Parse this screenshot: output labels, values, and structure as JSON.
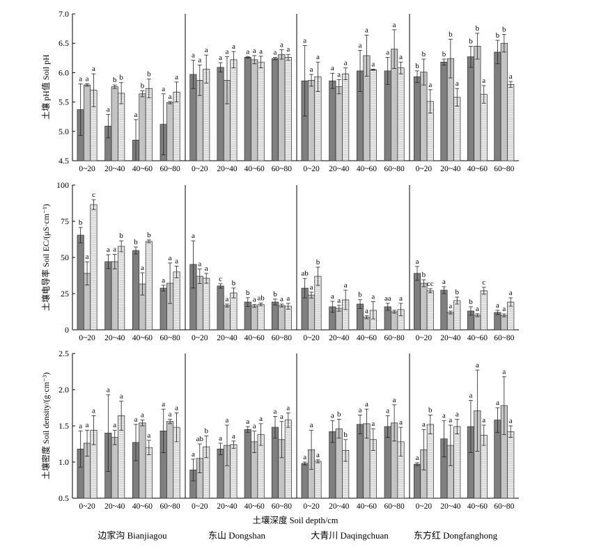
{
  "chart_data": {
    "type": "bar",
    "xlabel": "土壤深度 Soil depth/cm",
    "sites": [
      "边家沟 Bianjiagou",
      "东山 Dongshan",
      "大青川 Daqingchuan",
      "东方红 Dongfanghong"
    ],
    "depths": [
      "0~20",
      "20~40",
      "40~60",
      "60~80"
    ],
    "series_colors": [
      "#7f7f7f",
      "#c4c4c4",
      "#ededed"
    ],
    "panels": [
      {
        "ylabel": "土壤 pH值  Soil pH",
        "ylim": [
          4.5,
          7.0
        ],
        "yticks": [
          "4.5",
          "5.0",
          "5.5",
          "6.0",
          "6.5",
          "7.0"
        ],
        "data": [
          [
            {
              "values": [
                5.37,
                5.79,
                5.7
              ],
              "errors": [
                0.44,
                0.02,
                0.28
              ],
              "letters": [
                "a",
                "a",
                "a"
              ]
            },
            {
              "values": [
                5.09,
                5.76,
                5.65
              ],
              "errors": [
                0.2,
                0.03,
                0.18
              ],
              "letters": [
                "a",
                "b",
                "b"
              ]
            },
            {
              "values": [
                4.85,
                5.64,
                5.73
              ],
              "errors": [
                0.35,
                0.05,
                0.16
              ],
              "letters": [
                "a",
                "b",
                "b"
              ]
            },
            {
              "values": [
                5.12,
                5.49,
                5.67
              ],
              "errors": [
                0.52,
                0.02,
                0.17
              ],
              "letters": [
                "a",
                "a",
                "a"
              ]
            }
          ],
          [
            {
              "values": [
                5.97,
                5.87,
                6.06
              ],
              "errors": [
                0.24,
                0.26,
                0.24
              ],
              "letters": [
                "a",
                "a",
                "a"
              ]
            },
            {
              "values": [
                6.09,
                5.87,
                6.22
              ],
              "errors": [
                0.08,
                0.4,
                0.14
              ],
              "letters": [
                "a",
                "a",
                "a"
              ]
            },
            {
              "values": [
                6.26,
                6.22,
                6.18
              ],
              "errors": [
                0.01,
                0.07,
                0.1
              ],
              "letters": [
                "a",
                "a",
                "a"
              ]
            },
            {
              "values": [
                6.24,
                6.31,
                6.26
              ],
              "errors": [
                0.02,
                0.08,
                0.05
              ],
              "letters": [
                "a",
                "a",
                "a"
              ]
            }
          ],
          [
            {
              "values": [
                5.86,
                5.87,
                5.93
              ],
              "errors": [
                0.6,
                0.1,
                0.25
              ],
              "letters": [
                "a",
                "a",
                "a"
              ]
            },
            {
              "values": [
                5.86,
                5.76,
                5.98
              ],
              "errors": [
                0.13,
                0.12,
                0.1
              ],
              "letters": [
                "a",
                "a",
                "a"
              ]
            },
            {
              "values": [
                6.03,
                6.29,
                6.05
              ],
              "errors": [
                0.35,
                0.35,
                0.01
              ],
              "letters": [
                "a",
                "a",
                "a"
              ]
            },
            {
              "values": [
                6.03,
                6.4,
                6.08
              ],
              "errors": [
                0.23,
                0.33,
                0.1
              ],
              "letters": [
                "a",
                "a",
                "a"
              ]
            }
          ],
          [
            {
              "values": [
                5.93,
                6.01,
                5.51
              ],
              "errors": [
                0.1,
                0.22,
                0.2
              ],
              "letters": [
                "b",
                "b",
                "a"
              ]
            },
            {
              "values": [
                6.18,
                6.24,
                5.58
              ],
              "errors": [
                0.05,
                0.33,
                0.15
              ],
              "letters": [
                "b",
                "b",
                "a"
              ]
            },
            {
              "values": [
                6.27,
                6.45,
                5.63
              ],
              "errors": [
                0.18,
                0.22,
                0.15
              ],
              "letters": [
                "b",
                "b",
                "a"
              ]
            },
            {
              "values": [
                6.35,
                6.5,
                5.8
              ],
              "errors": [
                0.2,
                0.15,
                0.05
              ],
              "letters": [
                "b",
                "b",
                "a"
              ]
            }
          ]
        ]
      },
      {
        "ylabel": "土壤电导率 Soil EC/(μS·cm⁻¹)",
        "ylim": [
          0,
          100
        ],
        "yticks": [
          "0",
          "25",
          "50",
          "75",
          "100"
        ],
        "data": [
          [
            {
              "values": [
                65.4,
                39.0,
                86.5
              ],
              "errors": [
                5.3,
                8.0,
                3.4
              ],
              "letters": [
                "b",
                "a",
                "c"
              ]
            },
            {
              "values": [
                47.1,
                47.1,
                57.7
              ],
              "errors": [
                4.8,
                5.0,
                3.8
              ],
              "letters": [
                "a",
                "a",
                "b"
              ]
            },
            {
              "values": [
                54.8,
                31.7,
                61.1
              ],
              "errors": [
                2.4,
                7.7,
                1.0
              ],
              "letters": [
                "b",
                "a",
                "b"
              ]
            },
            {
              "values": [
                28.8,
                32.2,
                40.0
              ],
              "errors": [
                2.0,
                14.0,
                4.0
              ],
              "letters": [
                "a",
                "a",
                "a"
              ]
            }
          ],
          [
            {
              "values": [
                45.2,
                37.0,
                35.6
              ],
              "errors": [
                16.3,
                5.0,
                3.4
              ],
              "letters": [
                "a",
                "a",
                "a"
              ]
            },
            {
              "values": [
                30.3,
                16.8,
                25.5
              ],
              "errors": [
                1.5,
                1.0,
                3.4
              ],
              "letters": [
                "c",
                "a",
                "b"
              ]
            },
            {
              "values": [
                19.2,
                16.5,
                17.5
              ],
              "errors": [
                3.0,
                1.0,
                1.0
              ],
              "letters": [
                "b",
                "a",
                "ab"
              ]
            },
            {
              "values": [
                19.2,
                16.8,
                16.3
              ],
              "errors": [
                2.0,
                1.0,
                2.0
              ],
              "letters": [
                "b",
                "a",
                "a"
              ]
            }
          ],
          [
            {
              "values": [
                28.8,
                24.0,
                37.0
              ],
              "errors": [
                6.7,
                2.0,
                6.3
              ],
              "letters": [
                "ab",
                "a",
                "b"
              ]
            },
            {
              "values": [
                15.9,
                14.9,
                20.7
              ],
              "errors": [
                3.8,
                2.0,
                6.7
              ],
              "letters": [
                "a",
                "a",
                "a"
              ]
            },
            {
              "values": [
                17.8,
                8.7,
                13.5
              ],
              "errors": [
                3.0,
                1.0,
                6.0
              ],
              "letters": [
                "b",
                "a",
                "a"
              ]
            },
            {
              "values": [
                15.9,
                12.5,
                14.0
              ],
              "errors": [
                2.4,
                1.0,
                4.3
              ],
              "letters": [
                "aa",
                "",
                "a"
              ]
            }
          ],
          [
            {
              "values": [
                39.0,
                32.2,
                27.0
              ],
              "errors": [
                4.8,
                2.4,
                1.4
              ],
              "letters": [
                "a",
                "b",
                "cc"
              ]
            },
            {
              "values": [
                27.4,
                12.0,
                20.2
              ],
              "errors": [
                2.4,
                1.0,
                2.4
              ],
              "letters": [
                "a",
                "a",
                "b"
              ]
            },
            {
              "values": [
                13.0,
                10.1,
                27.0
              ],
              "errors": [
                2.9,
                1.0,
                2.4
              ],
              "letters": [
                "b",
                "a",
                "c"
              ]
            },
            {
              "values": [
                12.0,
                10.0,
                19.2
              ],
              "errors": [
                1.5,
                1.0,
                2.9
              ],
              "letters": [
                "a",
                "a",
                "a"
              ]
            }
          ]
        ]
      },
      {
        "ylabel": "土壤密度 Soil density/(g·cm⁻³)",
        "ylim": [
          0.5,
          2.5
        ],
        "yticks": [
          "0.5",
          "1.0",
          "1.5",
          "2.0",
          "2.5"
        ],
        "data": [
          [
            {
              "values": [
                1.18,
                1.26,
                1.44
              ],
              "errors": [
                0.25,
                0.18,
                0.2
              ],
              "letters": [
                "a",
                "a",
                "a"
              ]
            },
            {
              "values": [
                1.4,
                1.34,
                1.64
              ],
              "errors": [
                0.53,
                0.1,
                0.2
              ],
              "letters": [
                "a",
                "a",
                "a"
              ]
            },
            {
              "values": [
                1.27,
                1.54,
                1.2
              ],
              "errors": [
                0.25,
                0.04,
                0.1
              ],
              "letters": [
                "a",
                "a",
                "a"
              ]
            },
            {
              "values": [
                1.43,
                1.56,
                1.48
              ],
              "errors": [
                0.3,
                0.03,
                0.2
              ],
              "letters": [
                "a",
                "a",
                "a"
              ]
            }
          ],
          [
            {
              "values": [
                0.89,
                1.05,
                1.21
              ],
              "errors": [
                0.15,
                0.2,
                0.15
              ],
              "letters": [
                "a",
                "ab",
                "b"
              ]
            },
            {
              "values": [
                1.18,
                1.23,
                1.24
              ],
              "errors": [
                0.08,
                0.28,
                0.05
              ],
              "letters": [
                "a",
                "a",
                "a"
              ]
            },
            {
              "values": [
                1.45,
                1.28,
                1.38
              ],
              "errors": [
                0.04,
                0.15,
                0.15
              ],
              "letters": [
                "a",
                "a",
                "a"
              ]
            },
            {
              "values": [
                1.48,
                1.31,
                1.58
              ],
              "errors": [
                0.15,
                0.25,
                0.1
              ],
              "letters": [
                "a",
                "a",
                "a"
              ]
            }
          ],
          [
            {
              "values": [
                0.98,
                1.17,
                1.01
              ],
              "errors": [
                0.02,
                0.27,
                0.02
              ],
              "letters": [
                "a",
                "a",
                "a"
              ]
            },
            {
              "values": [
                1.42,
                1.46,
                1.16
              ],
              "errors": [
                0.15,
                0.13,
                0.15
              ],
              "letters": [
                "a",
                "b",
                "b"
              ]
            },
            {
              "values": [
                1.52,
                1.53,
                1.31
              ],
              "errors": [
                0.13,
                0.2,
                0.15
              ],
              "letters": [
                "a",
                "a",
                "a"
              ]
            },
            {
              "values": [
                1.49,
                1.54,
                1.28
              ],
              "errors": [
                0.15,
                0.25,
                0.2
              ],
              "letters": [
                "a",
                "a",
                "a"
              ]
            }
          ],
          [
            {
              "values": [
                0.97,
                1.17,
                1.52
              ],
              "errors": [
                0.02,
                0.28,
                0.13
              ],
              "letters": [
                "a",
                "a",
                "b"
              ]
            },
            {
              "values": [
                1.32,
                1.23,
                1.49
              ],
              "errors": [
                0.25,
                0.28,
                0.1
              ],
              "letters": [
                "a",
                "a",
                "a"
              ]
            },
            {
              "values": [
                1.49,
                1.71,
                1.37
              ],
              "errors": [
                0.36,
                0.56,
                0.14
              ],
              "letters": [
                "a",
                "a",
                "a"
              ]
            },
            {
              "values": [
                1.58,
                1.78,
                1.42
              ],
              "errors": [
                0.17,
                0.4,
                0.08
              ],
              "letters": [
                "a",
                "a",
                "a"
              ]
            }
          ]
        ]
      }
    ]
  }
}
